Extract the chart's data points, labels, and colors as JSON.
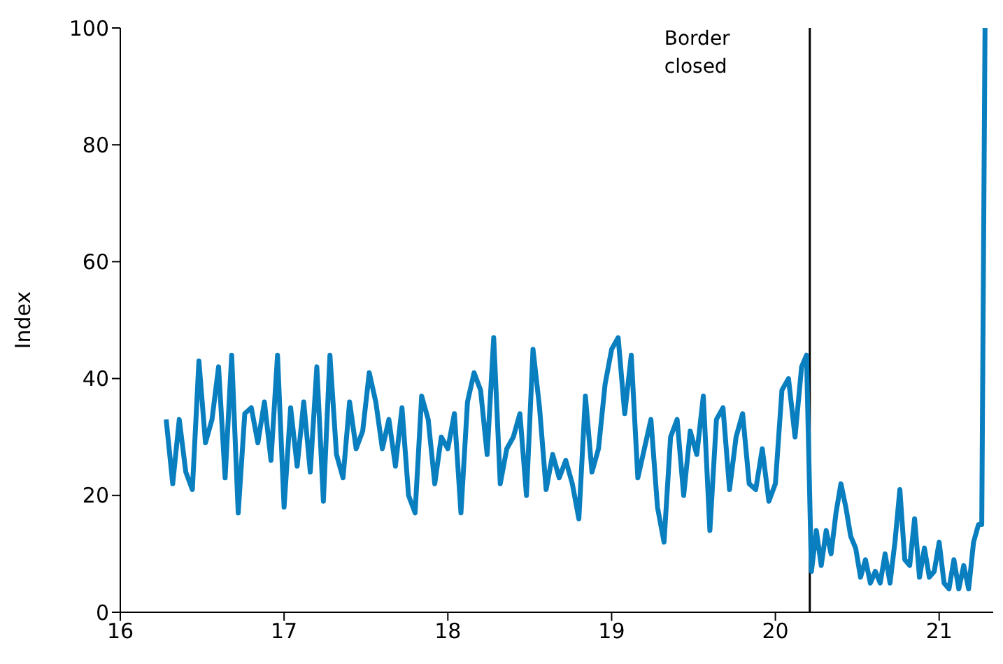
{
  "chart_data": {
    "type": "line",
    "ylabel": "Index",
    "xlim": [
      16,
      21.33
    ],
    "xticks": [
      16,
      17,
      18,
      19,
      20,
      21
    ],
    "ylim": [
      0,
      100
    ],
    "yticks": [
      0,
      20,
      40,
      60,
      80,
      100
    ],
    "grid": false,
    "legend": false,
    "marker": "none",
    "line_style": "solid",
    "ref_lines": [
      {
        "axis": "x",
        "value": 20.21,
        "label": "Border closed",
        "color": "#000000"
      }
    ],
    "series": [
      {
        "color": "#0a7fc0",
        "x": [
          16.28,
          16.32,
          16.36,
          16.4,
          16.44,
          16.48,
          16.52,
          16.56,
          16.6,
          16.64,
          16.68,
          16.72,
          16.76,
          16.8,
          16.84,
          16.88,
          16.92,
          16.96,
          17.0,
          17.04,
          17.08,
          17.12,
          17.16,
          17.2,
          17.24,
          17.28,
          17.32,
          17.36,
          17.4,
          17.44,
          17.48,
          17.52,
          17.56,
          17.6,
          17.64,
          17.68,
          17.72,
          17.76,
          17.8,
          17.84,
          17.88,
          17.92,
          17.96,
          18.0,
          18.04,
          18.08,
          18.12,
          18.16,
          18.2,
          18.24,
          18.28,
          18.32,
          18.36,
          18.4,
          18.44,
          18.48,
          18.52,
          18.56,
          18.6,
          18.64,
          18.68,
          18.72,
          18.76,
          18.8,
          18.84,
          18.88,
          18.92,
          18.96,
          19.0,
          19.04,
          19.08,
          19.12,
          19.16,
          19.2,
          19.24,
          19.28,
          19.32,
          19.36,
          19.4,
          19.44,
          19.48,
          19.52,
          19.56,
          19.6,
          19.64,
          19.68,
          19.72,
          19.76,
          19.8,
          19.84,
          19.88,
          19.92,
          19.96,
          20.0,
          20.04,
          20.08,
          20.12,
          20.16,
          20.19,
          20.22,
          20.25,
          20.28,
          20.31,
          20.34,
          20.37,
          20.4,
          20.43,
          20.46,
          20.49,
          20.52,
          20.55,
          20.58,
          20.61,
          20.64,
          20.67,
          20.7,
          20.73,
          20.76,
          20.79,
          20.82,
          20.85,
          20.88,
          20.91,
          20.94,
          20.97,
          21.0,
          21.03,
          21.06,
          21.09,
          21.12,
          21.15,
          21.18,
          21.21,
          21.24,
          21.26,
          21.28
        ],
        "values": [
          33,
          22,
          33,
          24,
          21,
          43,
          29,
          33,
          42,
          23,
          44,
          17,
          34,
          35,
          29,
          36,
          26,
          44,
          18,
          35,
          25,
          36,
          24,
          42,
          19,
          44,
          27,
          23,
          36,
          28,
          31,
          41,
          36,
          28,
          33,
          25,
          35,
          20,
          17,
          37,
          33,
          22,
          30,
          28,
          34,
          17,
          36,
          41,
          38,
          27,
          47,
          22,
          28,
          30,
          34,
          20,
          45,
          35,
          21,
          27,
          23,
          26,
          22,
          16,
          37,
          24,
          28,
          39,
          45,
          47,
          34,
          44,
          23,
          28,
          33,
          18,
          12,
          30,
          33,
          20,
          31,
          27,
          37,
          14,
          33,
          35,
          21,
          30,
          34,
          22,
          21,
          28,
          19,
          22,
          38,
          40,
          30,
          42,
          44,
          7,
          14,
          8,
          14,
          10,
          17,
          22,
          18,
          13,
          11,
          6,
          9,
          5,
          7,
          5,
          10,
          5,
          12,
          21,
          9,
          8,
          16,
          6,
          11,
          6,
          7,
          12,
          5,
          4,
          9,
          4,
          8,
          4,
          12,
          15,
          15,
          100
        ]
      }
    ]
  }
}
